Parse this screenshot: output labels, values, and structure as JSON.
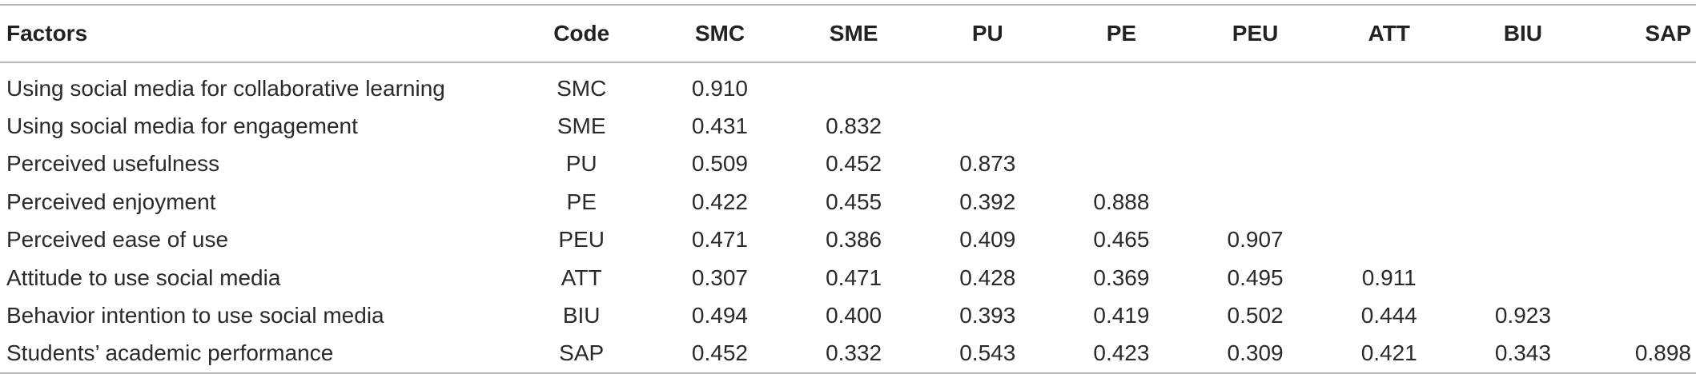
{
  "table": {
    "headers": [
      "Factors",
      "Code",
      "SMC",
      "SME",
      "PU",
      "PE",
      "PEU",
      "ATT",
      "BIU",
      "SAP"
    ],
    "rows": [
      {
        "factor": "Using social media for collaborative learning",
        "code": "SMC",
        "values": [
          "0.910",
          "",
          "",
          "",
          "",
          "",
          "",
          ""
        ]
      },
      {
        "factor": "Using social media for engagement",
        "code": "SME",
        "values": [
          "0.431",
          "0.832",
          "",
          "",
          "",
          "",
          "",
          ""
        ]
      },
      {
        "factor": "Perceived usefulness",
        "code": "PU",
        "values": [
          "0.509",
          "0.452",
          "0.873",
          "",
          "",
          "",
          "",
          ""
        ]
      },
      {
        "factor": "Perceived enjoyment",
        "code": "PE",
        "values": [
          "0.422",
          "0.455",
          "0.392",
          "0.888",
          "",
          "",
          "",
          ""
        ]
      },
      {
        "factor": "Perceived ease of use",
        "code": "PEU",
        "values": [
          "0.471",
          "0.386",
          "0.409",
          "0.465",
          "0.907",
          "",
          "",
          ""
        ]
      },
      {
        "factor": "Attitude to use social media",
        "code": "ATT",
        "values": [
          "0.307",
          "0.471",
          "0.428",
          "0.369",
          "0.495",
          "0.911",
          "",
          ""
        ]
      },
      {
        "factor": "Behavior intention to use social media",
        "code": "BIU",
        "values": [
          "0.494",
          "0.400",
          "0.393",
          "0.419",
          "0.502",
          "0.444",
          "0.923",
          ""
        ]
      },
      {
        "factor": "Students’ academic performance",
        "code": "SAP",
        "values": [
          "0.452",
          "0.332",
          "0.543",
          "0.423",
          "0.309",
          "0.421",
          "0.343",
          "0.898"
        ]
      }
    ]
  }
}
